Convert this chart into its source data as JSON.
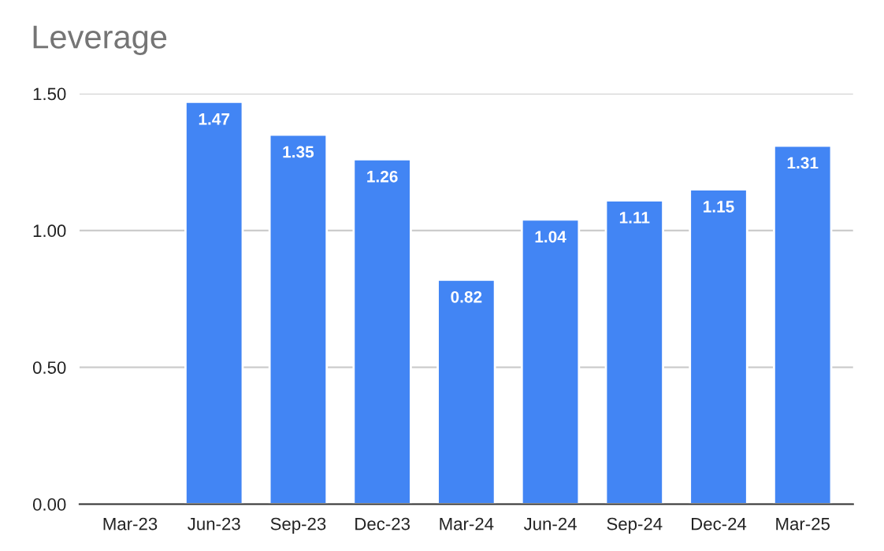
{
  "chart_data": {
    "type": "bar",
    "title": "Leverage",
    "categories": [
      "Mar-23",
      "Jun-23",
      "Sep-23",
      "Dec-23",
      "Mar-24",
      "Jun-24",
      "Sep-24",
      "Dec-24",
      "Mar-25"
    ],
    "values": [
      null,
      1.47,
      1.35,
      1.26,
      0.82,
      1.04,
      1.11,
      1.15,
      1.31
    ],
    "color": "#4285f4",
    "ylim": [
      0,
      1.5
    ],
    "yticks": [
      {
        "value": 0,
        "label": "0.00"
      },
      {
        "value": 0.5,
        "label": "0.50"
      },
      {
        "value": 1.0,
        "label": "1.00"
      },
      {
        "value": 1.5,
        "label": "1.50"
      }
    ],
    "grid": "y",
    "data_labels": true
  }
}
